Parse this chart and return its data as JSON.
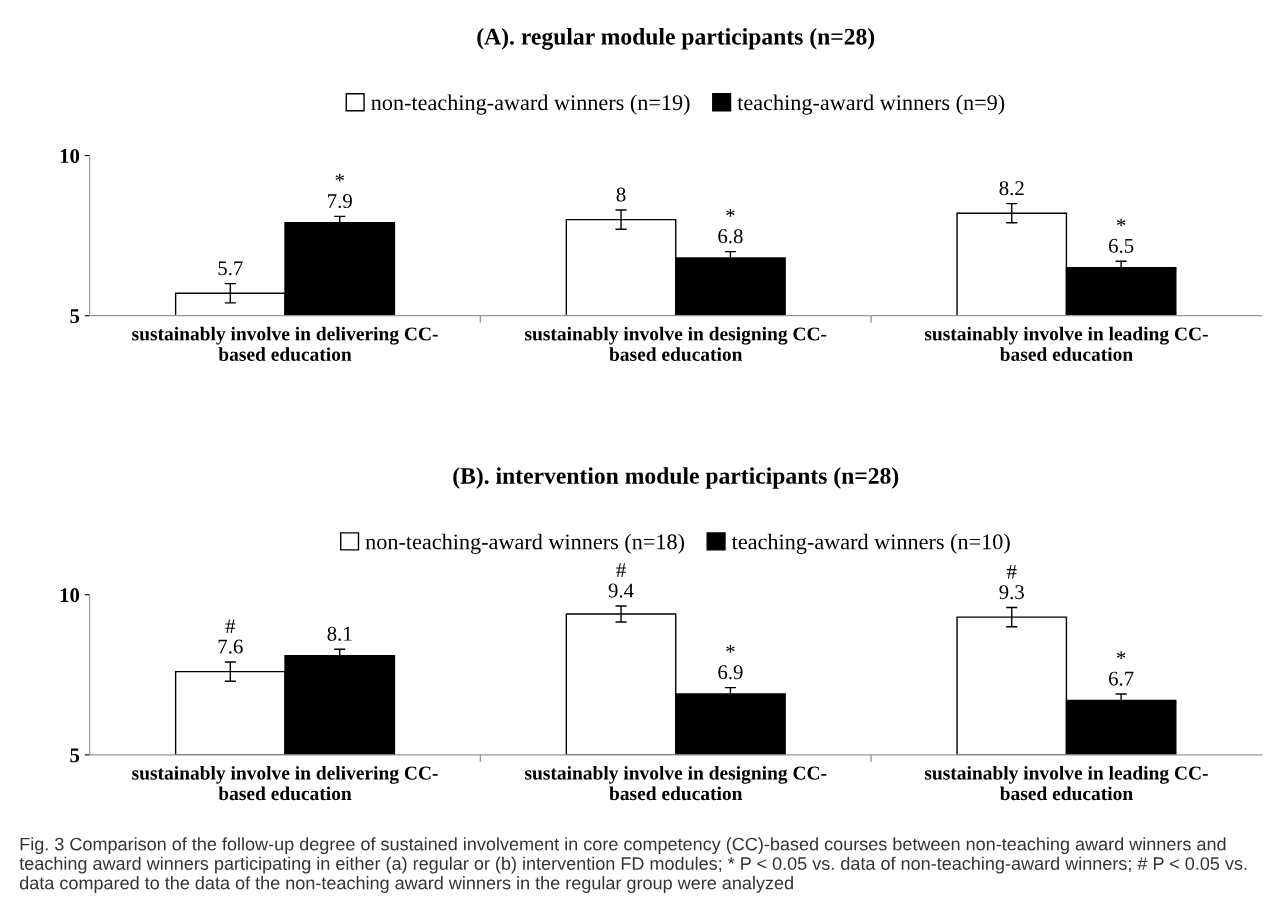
{
  "chart_data": [
    {
      "type": "bar",
      "title": "(A). regular module participants (n=28)",
      "categories": [
        "sustainably involve in delivering CC-based education",
        "sustainably involve in designing CC-based education",
        "sustainably involve in leading CC-based education"
      ],
      "series": [
        {
          "name": "non-teaching-award winners (n=19)",
          "color": "#ffffff",
          "values": [
            5.7,
            8,
            8.2
          ],
          "errors": [
            0.3,
            0.3,
            0.3
          ],
          "value_labels": [
            "5.7",
            "8",
            "8.2"
          ]
        },
        {
          "name": "teaching-award winners (n=9)",
          "color": "#000000",
          "values": [
            7.9,
            6.8,
            6.5
          ],
          "errors": [
            0.2,
            0.2,
            0.2
          ],
          "value_labels": [
            "*\n7.9",
            "*\n6.8",
            "*\n6.5"
          ]
        }
      ],
      "ylim": [
        5,
        10
      ],
      "yticks": [
        5,
        10
      ],
      "legend": "top"
    },
    {
      "type": "bar",
      "title": "(B). intervention module participants (n=28)",
      "categories": [
        "sustainably involve in delivering CC-based education",
        "sustainably involve in designing CC-based education",
        "sustainably involve in leading CC-based education"
      ],
      "series": [
        {
          "name": "non-teaching-award winners (n=18)",
          "color": "#ffffff",
          "values": [
            7.6,
            9.4,
            9.3
          ],
          "errors": [
            0.3,
            0.25,
            0.3
          ],
          "value_labels": [
            "#\n7.6",
            "#\n9.4",
            "#\n9.3"
          ]
        },
        {
          "name": "teaching-award winners (n=10)",
          "color": "#000000",
          "values": [
            8.1,
            6.9,
            6.7
          ],
          "errors": [
            0.2,
            0.2,
            0.2
          ],
          "value_labels": [
            "8.1",
            "*\n6.9",
            "*\n6.7"
          ]
        }
      ],
      "ylim": [
        5,
        10
      ],
      "yticks": [
        5,
        10
      ],
      "legend": "top",
      "annotations": [
        "Fig. 3 Comparison of the follow-up degree of sustained involvement in core competency (CC)-based courses between non-teaching award winners and teaching award winners participating in either (a) regular or (b) intervention FD modules; * P < 0.05 vs. data of non-teaching-award winners; # P < 0.05 vs. data compared to the data of the non-teaching award winners in the regular group were analyzed"
      ]
    }
  ]
}
